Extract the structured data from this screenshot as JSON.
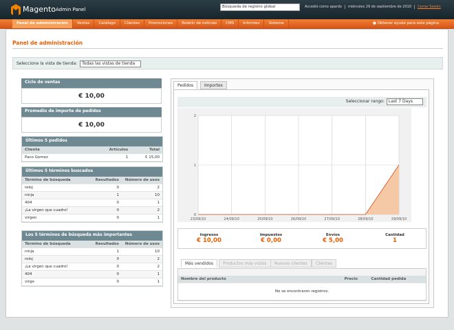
{
  "header": {
    "logo_brand": "Magento",
    "logo_sub": "Admin Panel",
    "search_placeholder": "Búsqueda de registro global",
    "user_info": "Accedió como apardo",
    "date": "miércoles 29 de septiembre de 2010",
    "logout": "Cerrar Sesión"
  },
  "nav": {
    "items": [
      "Panel de administración",
      "Ventas",
      "Catálogo",
      "Clientes",
      "Promociones",
      "Boletín de noticias",
      "CMS",
      "Informes",
      "Sistema"
    ],
    "help": "Obtener ayuda para esta página"
  },
  "page": {
    "title": "Panel de administración",
    "store_label": "Seleccione la vista de tienda:",
    "store_value": "Todas las vistas de tienda"
  },
  "sidebar": {
    "sales": {
      "title": "Ciclo de ventas",
      "value": "€ 10,00"
    },
    "average": {
      "title": "Promedio de importe de pedidos",
      "value": "€ 10,00"
    },
    "last_orders": {
      "title": "Últimos 5 pedidos",
      "columns": [
        "Cliente",
        "Artículos",
        "Total"
      ],
      "rows": [
        [
          "Paco Gomez",
          "1",
          "€ 15,00"
        ]
      ]
    },
    "last_searches": {
      "title": "Últimos 5 términos buscados",
      "columns": [
        "Término de búsqueda",
        "Resultados",
        "Número de usos"
      ],
      "rows": [
        [
          "reloj",
          "0",
          "2"
        ],
        [
          "ninja",
          "1",
          "10"
        ],
        [
          "404",
          "0",
          "1"
        ],
        [
          "¡La virgen que cuadro!",
          "0",
          "2"
        ],
        [
          "virgen",
          "0",
          "1"
        ]
      ]
    },
    "top_searches": {
      "title": "Los 5 términos de búsqueda más importantes",
      "columns": [
        "Término de búsqueda",
        "Resultados",
        "Número de usos"
      ],
      "rows": [
        [
          "ninja",
          "1",
          "10"
        ],
        [
          "reloj",
          "0",
          "2"
        ],
        [
          "¡La virgen que cuadro!",
          "0",
          "2"
        ],
        [
          "404",
          "0",
          "1"
        ],
        [
          "virge",
          "0",
          "1"
        ]
      ]
    }
  },
  "dashboard": {
    "tabs": [
      "Pedidos",
      "Importes"
    ],
    "range_label": "Seleccionar rango:",
    "range_value": "Last 7 Days",
    "chart": {
      "type": "area",
      "categories": [
        "23/09/10",
        "24/09/10",
        "25/09/10",
        "26/09/10",
        "27/09/10",
        "28/09/10",
        "29/09/10"
      ],
      "values": [
        0,
        0,
        0,
        0,
        0,
        0,
        1
      ],
      "ylim": [
        0,
        2
      ],
      "yticks": [
        0,
        1,
        2
      ],
      "color": "#f5c9a6",
      "grid": true
    },
    "totals": [
      {
        "label": "Ingresos",
        "value": "€ 10,00"
      },
      {
        "label": "Impuestos",
        "value": "€ 0,00"
      },
      {
        "label": "Envíos",
        "value": "€ 5,00"
      },
      {
        "label": "Cantidad",
        "value": "1"
      }
    ],
    "grid_tabs": [
      "Más vendidos",
      "Productos más vistos",
      "Nuevos clientes",
      "Clientes"
    ],
    "grid_columns": [
      "Nombre del producto",
      "Precio",
      "Cantidad pedida"
    ],
    "empty": "No se encontraron registros."
  }
}
